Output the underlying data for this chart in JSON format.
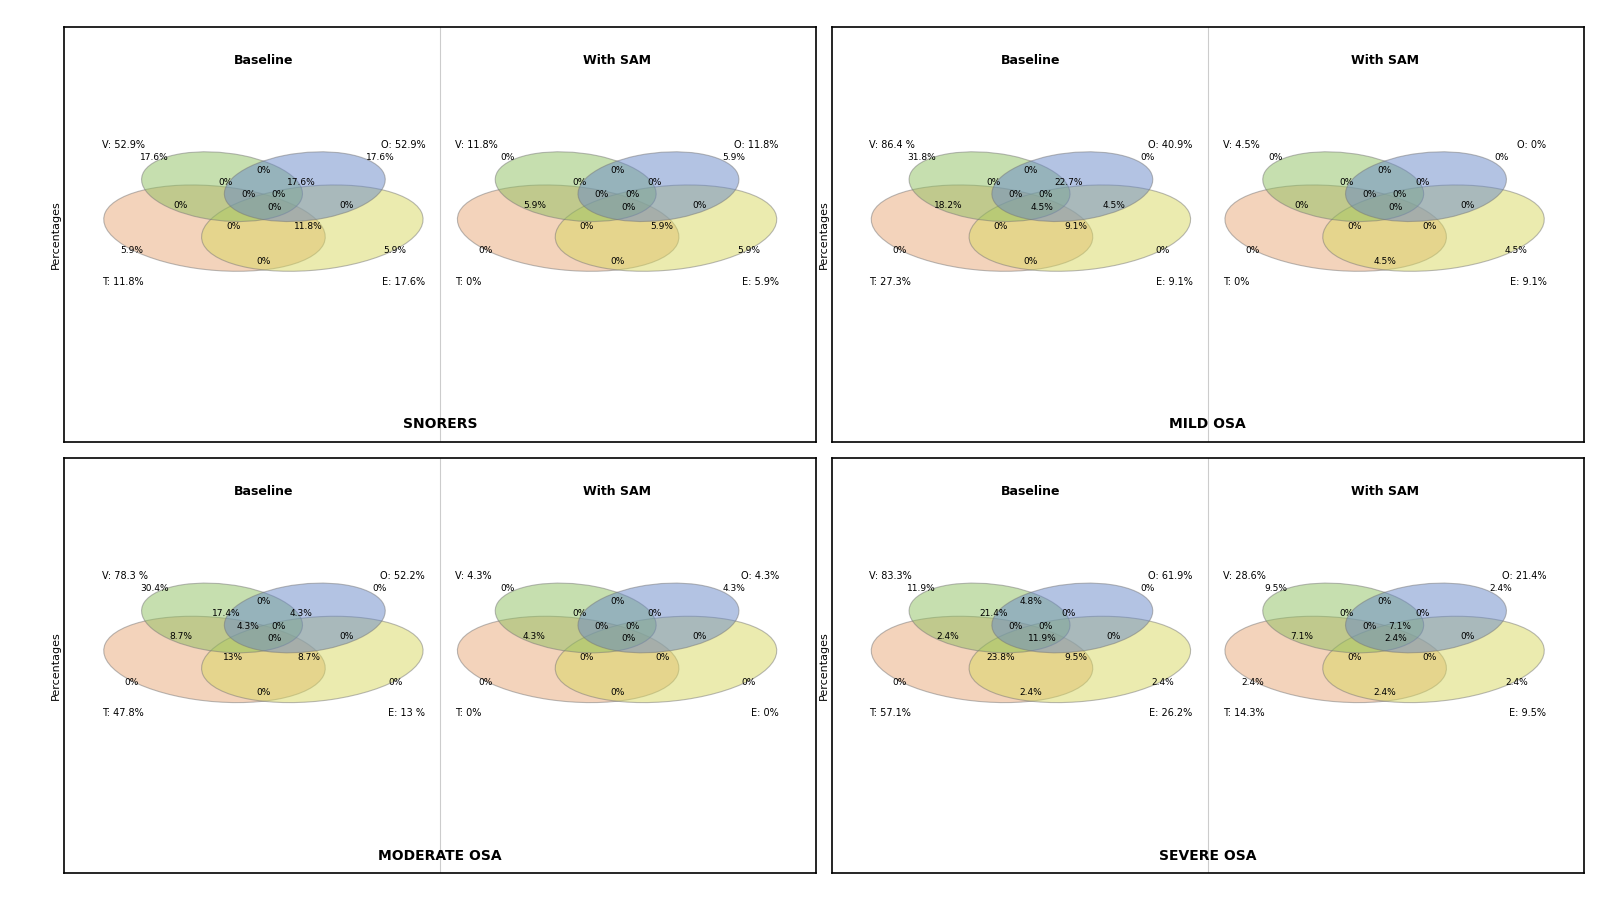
{
  "panels": [
    {
      "group": "SNORERS",
      "grid_row": 0,
      "grid_col": 0,
      "subpanels": [
        {
          "title": "Baseline",
          "V_label": "V: 52.9%",
          "O_label": "O: 52.9%",
          "T_label": "T: 11.8%",
          "E_label": "E: 17.6%",
          "regions": {
            "V_only": "17.6%",
            "O_only": "17.6%",
            "T_only": "5.9%",
            "E_only": "5.9%",
            "VO": "0%",
            "VT": "0%",
            "VE": "0%",
            "OT": "0%",
            "OE": "0%",
            "TE": "0%",
            "VOT": "0%",
            "VOE": "17.6%",
            "VTE": "0%",
            "OTE": "11.8%",
            "VOTE": "0%"
          }
        },
        {
          "title": "With SAM",
          "V_label": "V: 11.8%",
          "O_label": "O: 11.8%",
          "T_label": "T: 0%",
          "E_label": "E: 5.9%",
          "regions": {
            "V_only": "0%",
            "O_only": "5.9%",
            "T_only": "0%",
            "E_only": "5.9%",
            "VO": "0%",
            "VT": "5.9%",
            "VE": "0%",
            "OT": "0%",
            "OE": "0%",
            "TE": "0%",
            "VOT": "0%",
            "VOE": "0%",
            "VTE": "0%",
            "OTE": "5.9%",
            "VOTE": "0%"
          }
        }
      ]
    },
    {
      "group": "MILD OSA",
      "grid_row": 0,
      "grid_col": 1,
      "subpanels": [
        {
          "title": "Baseline",
          "V_label": "V: 86.4 %",
          "O_label": "O: 40.9%",
          "T_label": "T: 27.3%",
          "E_label": "E: 9.1%",
          "regions": {
            "V_only": "31.8%",
            "O_only": "0%",
            "T_only": "0%",
            "E_only": "0%",
            "VO": "0%",
            "VT": "18.2%",
            "VE": "0%",
            "OT": "0%",
            "OE": "4.5%",
            "TE": "0%",
            "VOT": "0%",
            "VOE": "22.7%",
            "VTE": "0%",
            "OTE": "9.1%",
            "VOTE": "4.5%"
          }
        },
        {
          "title": "With SAM",
          "V_label": "V: 4.5%",
          "O_label": "O: 0%",
          "T_label": "T: 0%",
          "E_label": "E: 9.1%",
          "regions": {
            "V_only": "0%",
            "O_only": "0%",
            "T_only": "0%",
            "E_only": "4.5%",
            "VO": "0%",
            "VT": "0%",
            "VE": "0%",
            "OT": "0%",
            "OE": "0%",
            "TE": "4.5%",
            "VOT": "0%",
            "VOE": "0%",
            "VTE": "0%",
            "OTE": "0%",
            "VOTE": "0%"
          }
        }
      ]
    },
    {
      "group": "MODERATE OSA",
      "grid_row": 1,
      "grid_col": 0,
      "subpanels": [
        {
          "title": "Baseline",
          "V_label": "V: 78.3 %",
          "O_label": "O: 52.2%",
          "T_label": "T: 47.8%",
          "E_label": "E: 13 %",
          "regions": {
            "V_only": "30.4%",
            "O_only": "0%",
            "T_only": "0%",
            "E_only": "0%",
            "VO": "0%",
            "VT": "8.7%",
            "VE": "4.3%",
            "OT": "0%",
            "OE": "0%",
            "TE": "0%",
            "VOT": "17.4%",
            "VOE": "4.3%",
            "VTE": "13%",
            "OTE": "8.7%",
            "VOTE": "0%"
          }
        },
        {
          "title": "With SAM",
          "V_label": "V: 4.3%",
          "O_label": "O: 4.3%",
          "T_label": "T: 0%",
          "E_label": "E: 0%",
          "regions": {
            "V_only": "0%",
            "O_only": "4.3%",
            "T_only": "0%",
            "E_only": "0%",
            "VO": "0%",
            "VT": "4.3%",
            "VE": "0%",
            "OT": "0%",
            "OE": "0%",
            "TE": "0%",
            "VOT": "0%",
            "VOE": "0%",
            "VTE": "0%",
            "OTE": "0%",
            "VOTE": "0%"
          }
        }
      ]
    },
    {
      "group": "SEVERE OSA",
      "grid_row": 1,
      "grid_col": 1,
      "subpanels": [
        {
          "title": "Baseline",
          "V_label": "V: 83.3%",
          "O_label": "O: 61.9%",
          "T_label": "T: 57.1%",
          "E_label": "E: 26.2%",
          "regions": {
            "V_only": "11.9%",
            "O_only": "0%",
            "T_only": "0%",
            "E_only": "2.4%",
            "VO": "4.8%",
            "VT": "2.4%",
            "VE": "0%",
            "OT": "0%",
            "OE": "0%",
            "TE": "2.4%",
            "VOT": "21.4%",
            "VOE": "0%",
            "VTE": "23.8%",
            "OTE": "9.5%",
            "VOTE": "11.9%"
          }
        },
        {
          "title": "With SAM",
          "V_label": "V: 28.6%",
          "O_label": "O: 21.4%",
          "T_label": "T: 14.3%",
          "E_label": "E: 9.5%",
          "regions": {
            "V_only": "9.5%",
            "O_only": "2.4%",
            "T_only": "2.4%",
            "E_only": "2.4%",
            "VO": "0%",
            "VT": "7.1%",
            "VE": "0%",
            "OT": "7.1%",
            "OE": "0%",
            "TE": "2.4%",
            "VOT": "0%",
            "VOE": "0%",
            "VTE": "0%",
            "OTE": "0%",
            "VOTE": "2.4%"
          }
        }
      ]
    }
  ],
  "colors": {
    "V": "#8fc060",
    "O": "#6888c8",
    "T": "#e8a878",
    "E": "#d8d860"
  },
  "alpha": 0.5,
  "background": "#ffffff",
  "title_fontsize": 9,
  "label_fontsize": 7,
  "region_fontsize": 6.5,
  "group_fontsize": 10,
  "ylabel": "Percentages"
}
